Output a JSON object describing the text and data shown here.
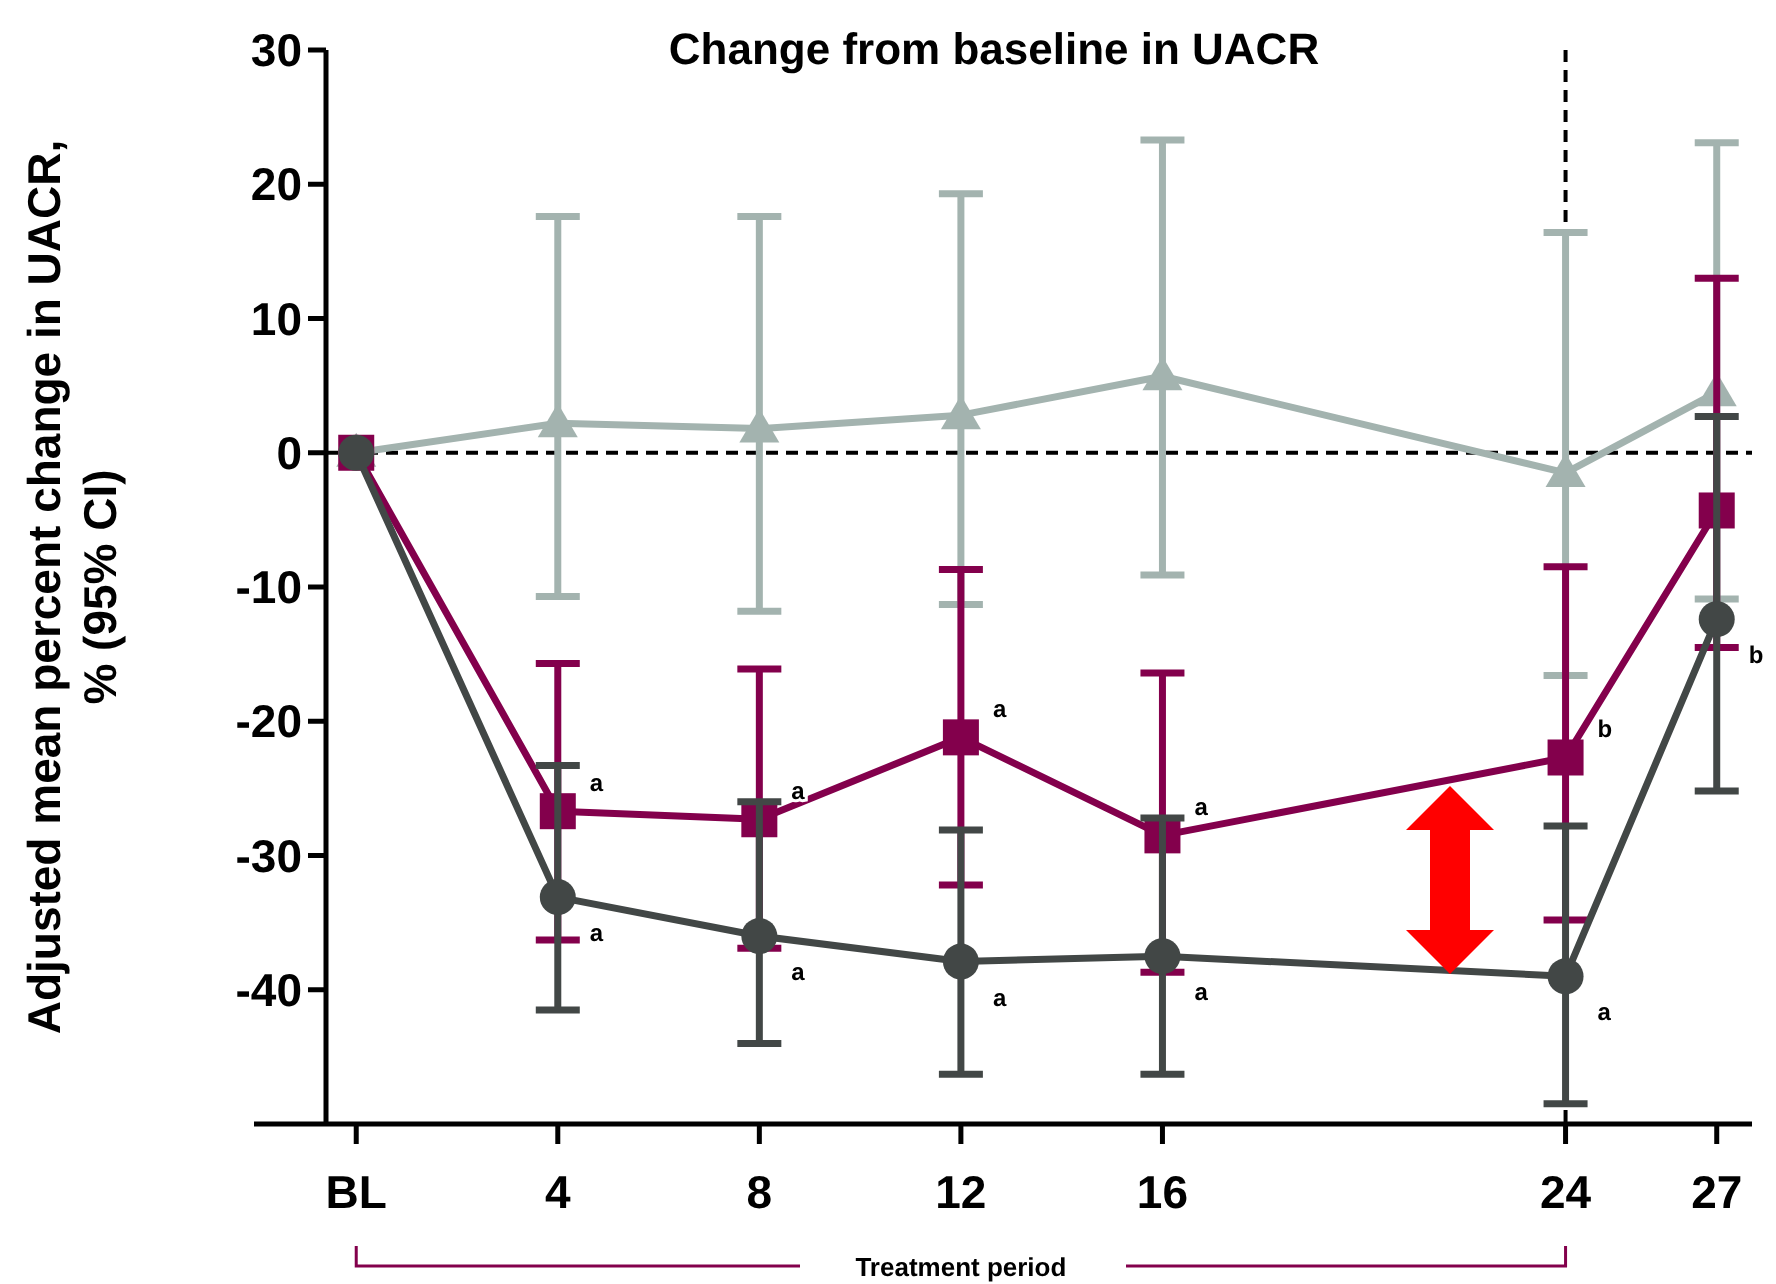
{
  "chart_data": {
    "type": "line",
    "title": "Change from baseline in UACR",
    "ylabel": "Adjusted mean percent change in UACR,\n% (95% CI)",
    "x": [
      0,
      4,
      8,
      12,
      16,
      24,
      27
    ],
    "xlim": [
      -0.6,
      27.7
    ],
    "xticks": [
      {
        "value": 0,
        "label": "BL"
      },
      4,
      8,
      12,
      16,
      24,
      27
    ],
    "ylim": [
      -50,
      30
    ],
    "yticks": [
      30,
      20,
      10,
      0,
      -10,
      -20,
      -30,
      -40
    ],
    "grid": false,
    "line_style": "solid",
    "series": [
      {
        "color": "#a3b3af",
        "marker": "triangle",
        "values": [
          0,
          2.2,
          1.8,
          2.8,
          5.7,
          -1.5,
          4.5
        ],
        "errors": [
          null,
          [
            -10.7,
            17.6
          ],
          [
            -11.8,
            17.6
          ],
          [
            -11.3,
            19.3
          ],
          [
            -9.1,
            23.3
          ],
          [
            -16.6,
            16.4
          ],
          [
            -10.9,
            23.1
          ]
        ]
      },
      {
        "color": "#83004c",
        "marker": "square",
        "values": [
          0,
          -26.7,
          -27.3,
          -21.2,
          -28.5,
          -22.7,
          -4.3
        ],
        "errors": [
          null,
          [
            -36.3,
            -15.7
          ],
          [
            -36.9,
            -16.1
          ],
          [
            -32.2,
            -8.7
          ],
          [
            -38.7,
            -16.4
          ],
          [
            -34.8,
            -8.5
          ],
          [
            -14.5,
            13.0
          ]
        ]
      },
      {
        "color": "#424746",
        "marker": "circle",
        "values": [
          0,
          -33.1,
          -36.0,
          -37.9,
          -37.5,
          -39.0,
          -12.4
        ],
        "errors": [
          null,
          [
            -41.5,
            -23.3
          ],
          [
            -44.0,
            -26.0
          ],
          [
            -46.3,
            -28.1
          ],
          [
            -46.3,
            -27.2
          ],
          [
            -48.5,
            -27.8
          ],
          [
            -25.2,
            2.7
          ]
        ]
      }
    ],
    "ref_lines": [
      {
        "axis": "y",
        "value": 0,
        "color": "#000000",
        "line_style": "dashed"
      },
      {
        "axis": "x",
        "value": 24,
        "color": "#000000",
        "line_style": "dashed"
      }
    ],
    "annotations": [
      {
        "text": "a",
        "x": 4,
        "y": -26.7
      },
      {
        "text": "a",
        "x": 8,
        "y": -27.3
      },
      {
        "text": "a",
        "x": 12,
        "y": -21.2
      },
      {
        "text": "a",
        "x": 16,
        "y": -28.5
      },
      {
        "text": "b",
        "x": 24,
        "y": -22.7
      },
      {
        "text": "a",
        "x": 4,
        "y": -33.1
      },
      {
        "text": "a",
        "x": 8,
        "y": -36.0
      },
      {
        "text": "a",
        "x": 12,
        "y": -37.9
      },
      {
        "text": "a",
        "x": 16,
        "y": -37.5
      },
      {
        "text": "a",
        "x": 24,
        "y": -39.0
      },
      {
        "text": "b",
        "x": 27,
        "y": -12.4
      },
      "Treatment period"
    ]
  }
}
